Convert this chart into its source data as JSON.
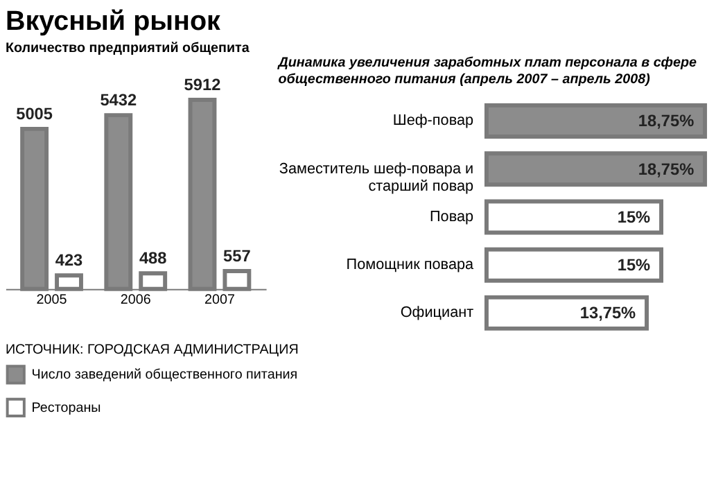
{
  "chart_data": [
    {
      "type": "bar",
      "title": "Вкусный рынок",
      "subtitle": "Количество предприятий общепита",
      "categories": [
        "2005",
        "2006",
        "2007"
      ],
      "series": [
        {
          "name": "Число заведений общественного питания",
          "color": "#8c8c8c",
          "values": [
            5005,
            5432,
            5912
          ]
        },
        {
          "name": "Рестораны",
          "color": "#ffffff",
          "values": [
            423,
            488,
            557
          ]
        }
      ],
      "data_labels": true,
      "legend": "bottom",
      "grid": false,
      "tick_labels": "x",
      "annotations": [
        "ИСТОЧНИК: ГОРОДСКАЯ АДМИНИСТРАЦИЯ"
      ]
    },
    {
      "type": "bar",
      "orientation": "horizontal",
      "title": "Динамика увеличения заработных плат персонала в сфере общественного питания (апрель 2007 – апрель 2008)",
      "categories": [
        "Шеф-повар",
        "Заместитель шеф-повара и старший повар",
        "Повар",
        "Помощник повара",
        "Официант"
      ],
      "values": [
        18.75,
        18.75,
        15,
        15,
        13.75
      ],
      "colors": [
        "#8c8c8c",
        "#8c8c8c",
        "#ffffff",
        "#ffffff",
        "#ffffff"
      ],
      "value_labels": [
        "18,75%",
        "18,75%",
        "15%",
        "15%",
        "13,75%"
      ],
      "grid": false,
      "tick_labels": "y"
    }
  ]
}
